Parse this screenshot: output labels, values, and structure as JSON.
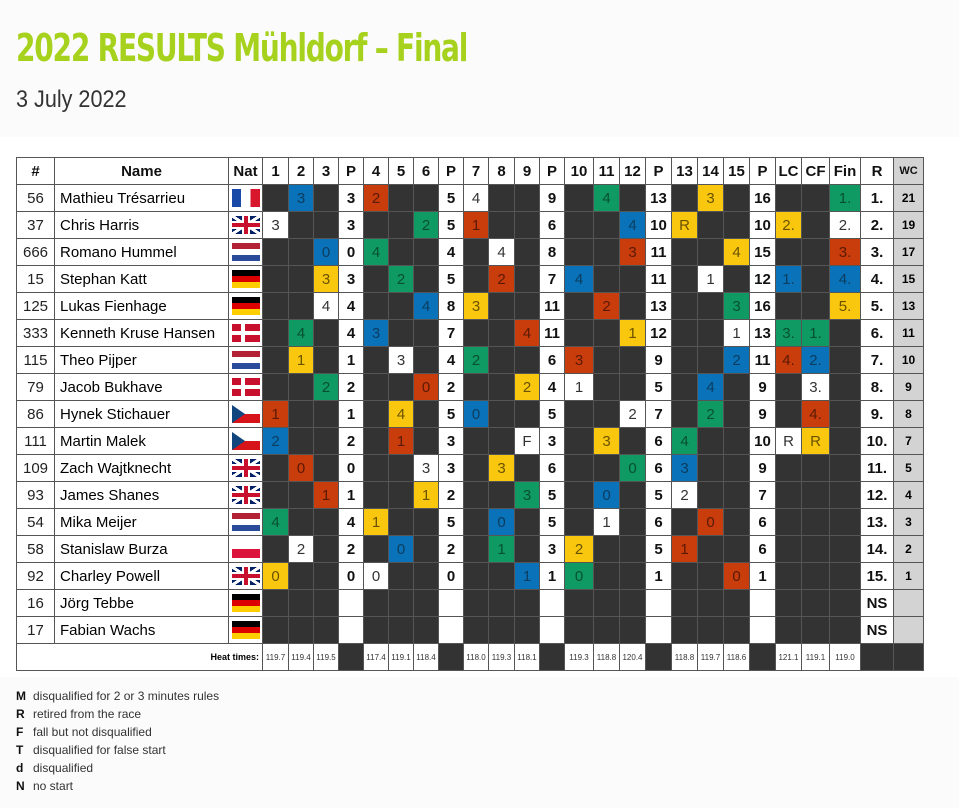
{
  "title": "2022 RESULTS Mühldorf – Final",
  "date": "3 July 2022",
  "colors": {
    "b": "#0a72b8",
    "r": "#c93c0b",
    "g": "#0e9a62",
    "y": "#f9c80e",
    "w": "#ffffff",
    "d": "#333333",
    "title": "#a6d11c"
  },
  "headers": [
    "#",
    "Name",
    "Nat",
    "1",
    "2",
    "3",
    "P",
    "4",
    "5",
    "6",
    "P",
    "7",
    "8",
    "9",
    "P",
    "10",
    "11",
    "12",
    "P",
    "13",
    "14",
    "15",
    "P",
    "LC",
    "CF",
    "Fin",
    "R",
    "WC"
  ],
  "rows": [
    {
      "num": "56",
      "name": "Mathieu Trésarrieu",
      "nat": "fr",
      "cells": [
        "",
        "3:b",
        "",
        "3:p",
        "2:r",
        "",
        "",
        "5:p",
        "4:w",
        "",
        "",
        "9:p",
        "",
        "4:g",
        "",
        "13:p",
        "",
        "3:y",
        "",
        "16:p",
        "",
        "",
        "1.:g",
        "1.:p"
      ],
      "wc": "21"
    },
    {
      "num": "37",
      "name": "Chris Harris",
      "nat": "gb",
      "cells": [
        "3:w",
        "",
        "",
        "3:p",
        "",
        "",
        "2:g",
        "5:p",
        "1:r",
        "",
        "",
        "6:p",
        "",
        "",
        "4:b",
        "10:p",
        "R:y",
        "",
        "",
        "10:p",
        "2.:y",
        "",
        "2.:w",
        "2.:p"
      ],
      "wc": "19"
    },
    {
      "num": "666",
      "name": "Romano Hummel",
      "nat": "nl",
      "cells": [
        "",
        "",
        "0:b",
        "0:p",
        "4:g",
        "",
        "",
        "4:p",
        "",
        "4:w",
        "",
        "8:p",
        "",
        "",
        "3:r",
        "11:p",
        "",
        "",
        "4:y",
        "15:p",
        "",
        "",
        "3.:r",
        "3.:p"
      ],
      "wc": "17"
    },
    {
      "num": "15",
      "name": "Stephan Katt",
      "nat": "de",
      "cells": [
        "",
        "",
        "3:y",
        "3:p",
        "",
        "2:g",
        "",
        "5:p",
        "",
        "2:r",
        "",
        "7:p",
        "4:b",
        "",
        "",
        "11:p",
        "",
        "1:w",
        "",
        "12:p",
        "1.:b",
        "",
        "4.:b",
        "4.:p"
      ],
      "wc": "15"
    },
    {
      "num": "125",
      "name": "Lukas Fienhage",
      "nat": "de",
      "cells": [
        "",
        "",
        "4:w",
        "4:p",
        "",
        "",
        "4:b",
        "8:p",
        "3:y",
        "",
        "",
        "11:p",
        "",
        "2:r",
        "",
        "13:p",
        "",
        "",
        "3:g",
        "16:p",
        "",
        "",
        "5.:y",
        "5.:p"
      ],
      "wc": "13"
    },
    {
      "num": "333",
      "name": "Kenneth Kruse Hansen",
      "nat": "dk",
      "cells": [
        "",
        "4:g",
        "",
        "4:p",
        "3:b",
        "",
        "",
        "7:p",
        "",
        "",
        "4:r",
        "11:p",
        "",
        "",
        "1:y",
        "12:p",
        "",
        "",
        "1:w",
        "13:p",
        "3.:g",
        "1.:g",
        "",
        "6.:p"
      ],
      "wc": "11"
    },
    {
      "num": "115",
      "name": "Theo Pijper",
      "nat": "nl",
      "cells": [
        "",
        "1:y",
        "",
        "1:p",
        "",
        "3:w",
        "",
        "4:p",
        "2:g",
        "",
        "",
        "6:p",
        "3:r",
        "",
        "",
        "9:p",
        "",
        "",
        "2:b",
        "11:p",
        "4.:r",
        "2.:b",
        "",
        "7.:p"
      ],
      "wc": "10"
    },
    {
      "num": "79",
      "name": "Jacob Bukhave",
      "nat": "dk",
      "cells": [
        "",
        "",
        "2:g",
        "2:p",
        "",
        "",
        "0:r",
        "2:p",
        "",
        "",
        "2:y",
        "4:p",
        "1:w",
        "",
        "",
        "5:p",
        "",
        "4:b",
        "",
        "9:p",
        "",
        "3.:w",
        "",
        "8.:p"
      ],
      "wc": "9"
    },
    {
      "num": "86",
      "name": "Hynek Stichauer",
      "nat": "cz",
      "cells": [
        "1:r",
        "",
        "",
        "1:p",
        "",
        "4:y",
        "",
        "5:p",
        "0:b",
        "",
        "",
        "5:p",
        "",
        "",
        "2:w",
        "7:p",
        "",
        "2:g",
        "",
        "9:p",
        "",
        "4.:r",
        "",
        "9.:p"
      ],
      "wc": "8"
    },
    {
      "num": "111",
      "name": "Martin Malek",
      "nat": "cz",
      "cells": [
        "2:b",
        "",
        "",
        "2:p",
        "",
        "1:r",
        "",
        "3:p",
        "",
        "",
        "F:w",
        "3:p",
        "",
        "3:y",
        "",
        "6:p",
        "4:g",
        "",
        "",
        "10:p",
        "R:w",
        "R:y",
        "",
        "10.:p"
      ],
      "wc": "7"
    },
    {
      "num": "109",
      "name": "Zach Wajtknecht",
      "nat": "gb",
      "cells": [
        "",
        "0:r",
        "",
        "0:p",
        "",
        "",
        "3:w",
        "3:p",
        "",
        "3:y",
        "",
        "6:p",
        "",
        "",
        "0:g",
        "6:p",
        "3:b",
        "",
        "",
        "9:p",
        "",
        "",
        "",
        "11.:p"
      ],
      "wc": "5"
    },
    {
      "num": "93",
      "name": "James Shanes",
      "nat": "gb",
      "cells": [
        "",
        "",
        "1:r",
        "1:p",
        "",
        "",
        "1:y",
        "2:p",
        "",
        "",
        "3:g",
        "5:p",
        "",
        "0:b",
        "",
        "5:p",
        "2:w",
        "",
        "",
        "7:p",
        "",
        "",
        "",
        "12.:p"
      ],
      "wc": "4"
    },
    {
      "num": "54",
      "name": "Mika Meijer",
      "nat": "nl",
      "cells": [
        "4:g",
        "",
        "",
        "4:p",
        "1:y",
        "",
        "",
        "5:p",
        "",
        "0:b",
        "",
        "5:p",
        "",
        "1:w",
        "",
        "6:p",
        "",
        "0:r",
        "",
        "6:p",
        "",
        "",
        "",
        "13.:p"
      ],
      "wc": "3"
    },
    {
      "num": "58",
      "name": "Stanislaw Burza",
      "nat": "pl",
      "cells": [
        "",
        "2:w",
        "",
        "2:p",
        "",
        "0:b",
        "",
        "2:p",
        "",
        "1:g",
        "",
        "3:p",
        "2:y",
        "",
        "",
        "5:p",
        "1:r",
        "",
        "",
        "6:p",
        "",
        "",
        "",
        "14.:p"
      ],
      "wc": "2"
    },
    {
      "num": "92",
      "name": "Charley Powell",
      "nat": "gb",
      "cells": [
        "0:y",
        "",
        "",
        "0:p",
        "0:w",
        "",
        "",
        "0:p",
        "",
        "",
        "1:b",
        "1:p",
        "0:g",
        "",
        "",
        "1:p",
        "",
        "",
        "0:r",
        "1:p",
        "",
        "",
        "",
        "15.:p"
      ],
      "wc": "1"
    },
    {
      "num": "16",
      "name": "Jörg Tebbe",
      "nat": "de",
      "cells": [
        "",
        "",
        "",
        ":p",
        "",
        "",
        "",
        ":p",
        "",
        "",
        "",
        ":p",
        "",
        "",
        "",
        ":p",
        "",
        "",
        "",
        ":p",
        "",
        "",
        "",
        "NS:p"
      ],
      "wc": ""
    },
    {
      "num": "17",
      "name": "Fabian Wachs",
      "nat": "de",
      "cells": [
        "",
        "",
        "",
        ":p",
        "",
        "",
        "",
        ":p",
        "",
        "",
        "",
        ":p",
        "",
        "",
        "",
        ":p",
        "",
        "",
        "",
        ":p",
        "",
        "",
        "",
        "NS:p"
      ],
      "wc": ""
    }
  ],
  "heat_times_label": "Heat times:",
  "heat_times": [
    "119.7",
    "119.4",
    "119.5",
    null,
    "117.4",
    "119.1",
    "118.4",
    null,
    "118.0",
    "119.3",
    "118.1",
    null,
    "119.3",
    "118.8",
    "120.4",
    null,
    "118.8",
    "119.7",
    "118.6",
    null,
    "121.1",
    "119.1",
    "119.0",
    null,
    null
  ],
  "legend": [
    {
      "code": "M",
      "text": "disqualified for 2 or 3 minutes rules"
    },
    {
      "code": "R",
      "text": "retired from the race"
    },
    {
      "code": "F",
      "text": "fall but not disqualified"
    },
    {
      "code": "T",
      "text": "disqualified for false start"
    },
    {
      "code": "d",
      "text": "disqualified"
    },
    {
      "code": "N",
      "text": "no start"
    }
  ]
}
